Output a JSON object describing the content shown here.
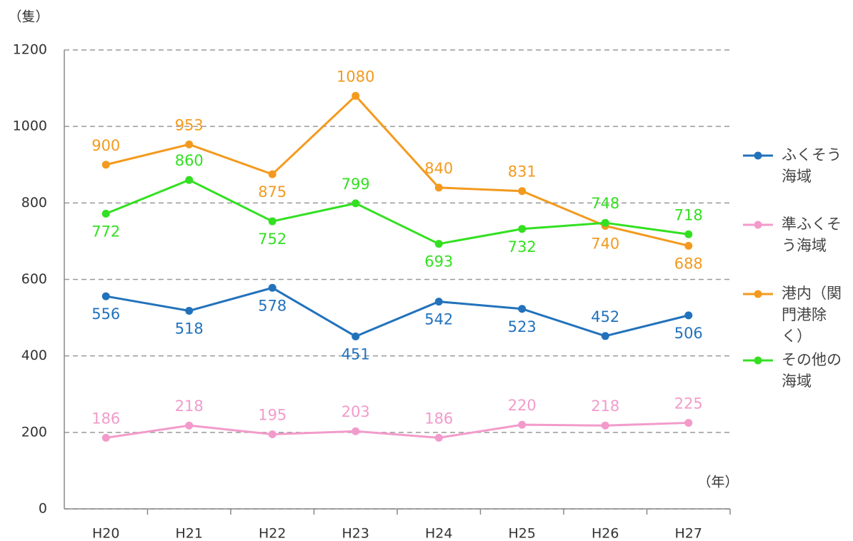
{
  "chart_data": {
    "type": "line",
    "y_label": "（隻）",
    "x_label": "（年）",
    "categories": [
      "H20",
      "H21",
      "H22",
      "H23",
      "H24",
      "H25",
      "H26",
      "H27"
    ],
    "series": [
      {
        "name": "ふくそう海域",
        "color": "#2272bb",
        "values": [
          556,
          518,
          578,
          451,
          542,
          523,
          452,
          506
        ]
      },
      {
        "name": "準ふくそう海域",
        "color": "#f29bcb",
        "values": [
          186,
          218,
          195,
          203,
          186,
          220,
          218,
          225
        ]
      },
      {
        "name": "港内（関門港除く）",
        "color": "#f39a1e",
        "values": [
          900,
          953,
          875,
          1080,
          840,
          831,
          740,
          688
        ]
      },
      {
        "name": "その他の海域",
        "color": "#33e021",
        "values": [
          772,
          860,
          752,
          799,
          693,
          732,
          748,
          718
        ]
      }
    ],
    "ylim": [
      0,
      1200
    ],
    "yticks": [
      0,
      200,
      400,
      600,
      800,
      1000,
      1200
    ],
    "grid": true,
    "legend": "right"
  }
}
